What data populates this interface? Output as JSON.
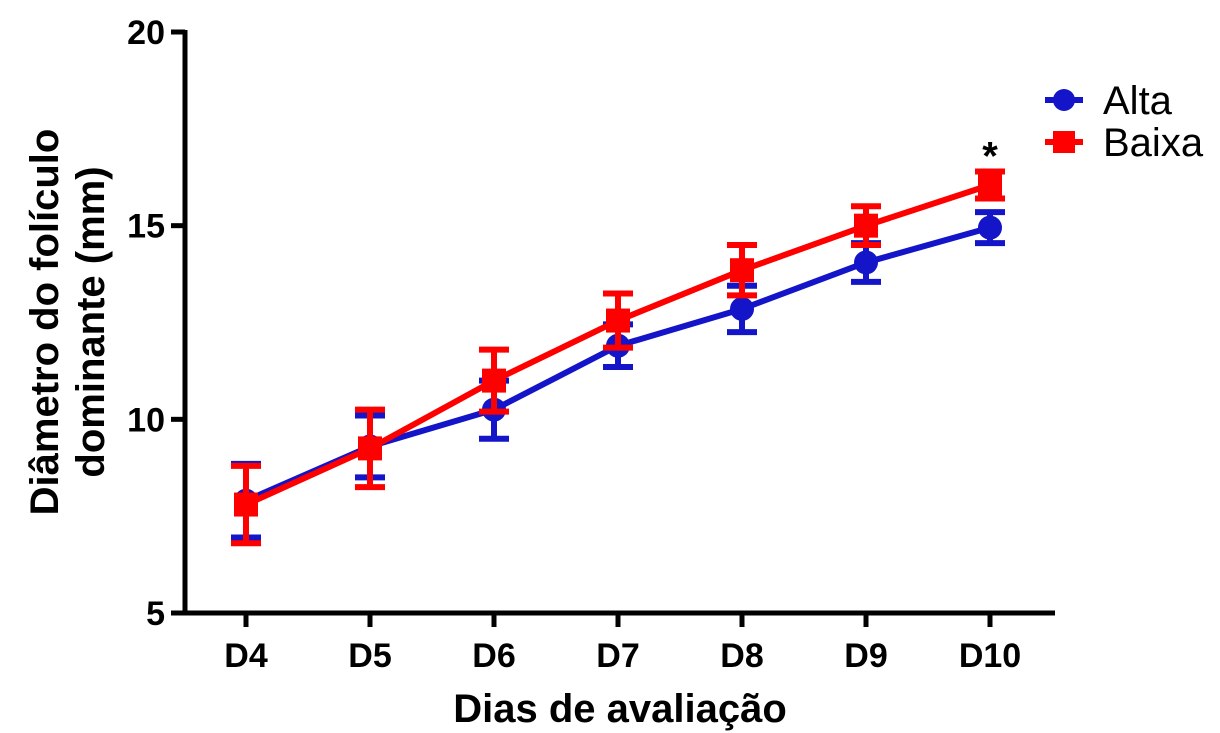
{
  "chart_data": {
    "type": "line",
    "title": "",
    "xlabel": "Dias de avaliação",
    "ylabel_lines": [
      "Diâmetro do folículo",
      "dominante (mm)"
    ],
    "categories": [
      "D4",
      "D5",
      "D6",
      "D7",
      "D8",
      "D9",
      "D10"
    ],
    "ylim": [
      5,
      20
    ],
    "yticks": [
      "5",
      "10",
      "15",
      "20"
    ],
    "grid": false,
    "legend_position": "top-right",
    "series": [
      {
        "name": "Alta",
        "color": "#1414c8",
        "marker": "circle",
        "values": [
          7.9,
          9.3,
          10.25,
          11.9,
          12.85,
          14.05,
          14.95
        ],
        "errors": [
          0.95,
          0.8,
          0.75,
          0.55,
          0.6,
          0.5,
          0.4
        ]
      },
      {
        "name": "Baixa",
        "color": "#ff0000",
        "marker": "square",
        "values": [
          7.8,
          9.25,
          11.0,
          12.55,
          13.85,
          15.0,
          16.05
        ],
        "errors": [
          1.0,
          1.0,
          0.8,
          0.7,
          0.65,
          0.5,
          0.35
        ]
      }
    ],
    "annotations": [
      {
        "text": "*",
        "category": "D10"
      }
    ]
  }
}
